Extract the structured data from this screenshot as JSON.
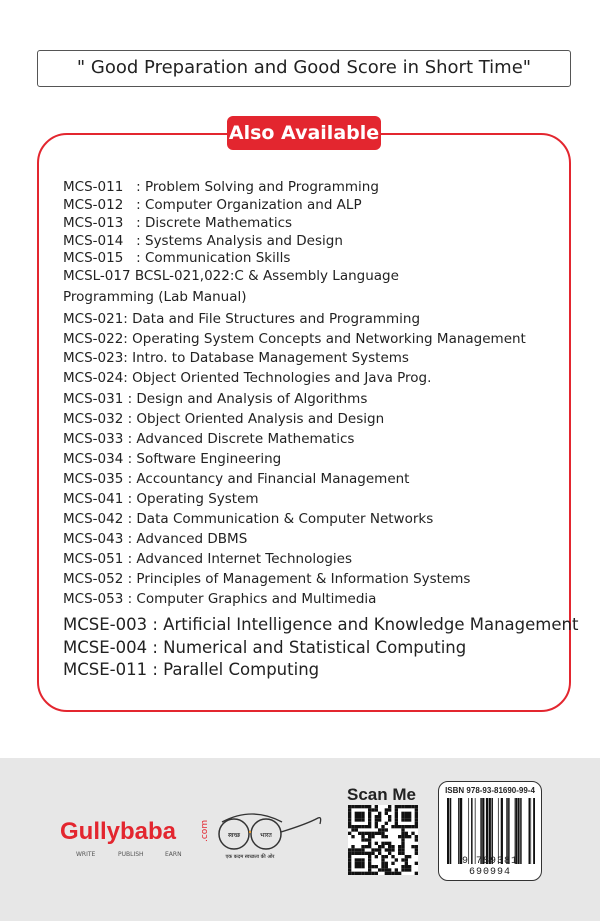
{
  "tagline": "\" Good Preparation and Good Score in Short Time\"",
  "badge": "Also Available",
  "courses": [
    "MCS-011   : Problem Solving and Programming",
    "MCS-012   : Computer Organization and ALP",
    "MCS-013   : Discrete Mathematics",
    "MCS-014   : Systems Analysis and Design",
    "MCS-015   : Communication Skills",
    "MCSL-017 BCSL-021,022:C & Assembly Language",
    "Programming (Lab Manual)",
    "MCS-021: Data and File Structures and Programming",
    "MCS-022: Operating System Concepts and Networking Management",
    "MCS-023: Intro. to Database Management Systems",
    "MCS-024: Object Oriented Technologies and Java Prog.",
    "MCS-031 : Design and Analysis of Algorithms",
    "MCS-032 : Object Oriented Analysis and Design",
    "MCS-033 : Advanced Discrete Mathematics",
    "MCS-034 : Software Engineering",
    "MCS-035 : Accountancy and Financial Management",
    "MCS-041 : Operating System",
    "MCS-042 : Data Communication & Computer Networks",
    "MCS-043 : Advanced DBMS",
    "MCS-051 : Advanced Internet Technologies",
    "MCS-052 : Principles of Management & Information Systems",
    "MCS-053 : Computer Graphics and Multimedia",
    "MCSE-003 : Artificial Intelligence and Knowledge Management",
    "MCSE-004 : Numerical and Statistical Computing",
    "MCSE-011 : Parallel Computing"
  ],
  "footer": {
    "logo": "Gullybaba",
    "logo_suffix": ".com",
    "logo_tags": [
      "WRITE",
      "PUBLISH",
      "EARN"
    ],
    "swachh_left": "स्वच्छ",
    "swachh_right": "भारत",
    "swachh_caption": "एक कदम स्वच्छता की ओर",
    "scan": "Scan Me",
    "isbn": "ISBN 978-93-81690-99-4",
    "ean": "9 789381 690994"
  },
  "colors": {
    "accent": "#e3262f",
    "band": "#e7e7e7"
  }
}
